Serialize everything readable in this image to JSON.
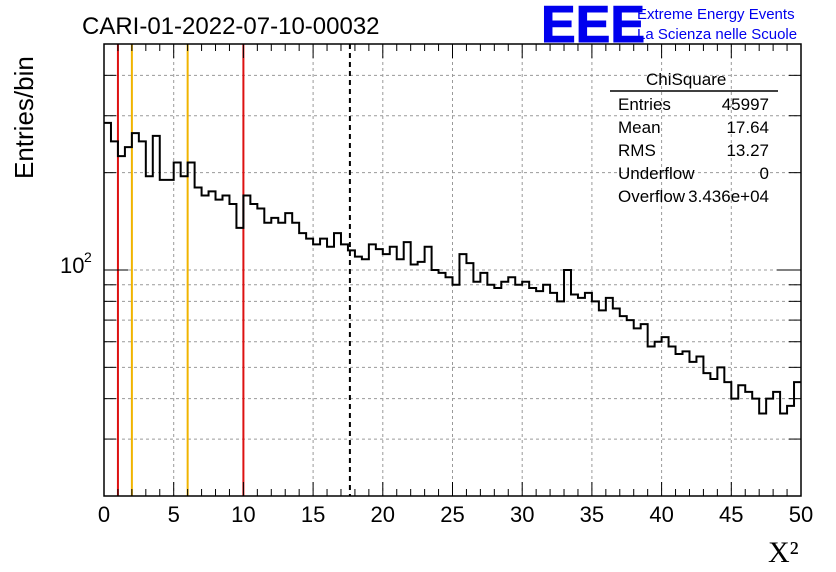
{
  "header": {
    "run_title": "CARI-01-2022-07-10-00032",
    "logo_mark": "EEE",
    "logo_line1": "Extreme Energy Events",
    "logo_line2": "La Scienza nelle Scuole"
  },
  "stats_box": {
    "title": "ChiSquare",
    "rows": [
      {
        "label": "Entries",
        "value": "45997"
      },
      {
        "label": "Mean",
        "value": "17.64"
      },
      {
        "label": "RMS",
        "value": "13.27"
      },
      {
        "label": "Underflow",
        "value": "0"
      },
      {
        "label": "Overflow",
        "value": "3.436e+04"
      }
    ]
  },
  "colors": {
    "red_line": "#dd1111",
    "orange_line": "#f0b400",
    "histogram": "#000000",
    "grid": "#9a9a9a",
    "logo": "#0000ee"
  },
  "chart_data": {
    "type": "histogram",
    "xlabel": "X²",
    "ylabel": "Entries/bin",
    "xlim": [
      0,
      50
    ],
    "ylim": [
      20,
      500
    ],
    "yscale": "log",
    "grid": true,
    "x_ticks": [
      0,
      5,
      10,
      15,
      20,
      25,
      30,
      35,
      40,
      45,
      50
    ],
    "y_tick_label": "10",
    "y_tick_label_exponent": "2",
    "y_tick_value": 100,
    "bin_width": 0.5,
    "values": [
      285,
      250,
      225,
      240,
      265,
      250,
      195,
      260,
      190,
      190,
      215,
      195,
      215,
      180,
      170,
      175,
      165,
      170,
      160,
      135,
      170,
      160,
      155,
      140,
      145,
      140,
      150,
      140,
      130,
      125,
      120,
      125,
      118,
      130,
      120,
      115,
      110,
      108,
      120,
      116,
      112,
      118,
      108,
      122,
      104,
      106,
      118,
      100,
      98,
      95,
      90,
      112,
      105,
      92,
      98,
      90,
      88,
      92,
      95,
      90,
      92,
      88,
      86,
      90,
      85,
      80,
      100,
      84,
      82,
      85,
      80,
      75,
      82,
      76,
      72,
      70,
      66,
      68,
      58,
      60,
      62,
      58,
      55,
      56,
      52,
      54,
      48,
      46,
      50,
      45,
      40,
      44,
      42,
      40,
      36,
      40,
      42,
      36,
      38,
      45
    ],
    "vertical_lines": [
      {
        "x": 1,
        "style": "red"
      },
      {
        "x": 10,
        "style": "red"
      },
      {
        "x": 2,
        "style": "orange"
      },
      {
        "x": 6,
        "style": "orange"
      },
      {
        "x": 17.64,
        "style": "mean-dashed"
      }
    ]
  }
}
